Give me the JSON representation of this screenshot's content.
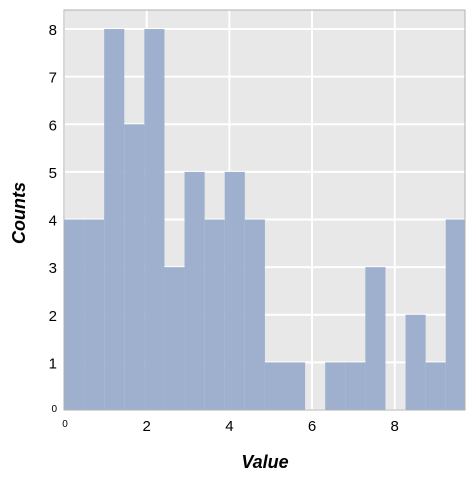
{
  "chart_data": {
    "type": "bar",
    "subtype": "histogram",
    "title": "",
    "xlabel": "Value",
    "ylabel": "Counts",
    "xlim": [
      0,
      9.7
    ],
    "ylim": [
      0,
      8.4
    ],
    "bin_width": 0.486,
    "bin_start": 0,
    "values": [
      4,
      4,
      8,
      6,
      8,
      3,
      5,
      4,
      5,
      4,
      1,
      1,
      0,
      1,
      1,
      3,
      0,
      2,
      1,
      4
    ],
    "x_ticks": [
      0,
      2,
      4,
      6,
      8
    ],
    "x_tick_labels": [
      "0",
      "2",
      "4",
      "6",
      "8"
    ],
    "y_ticks": [
      0,
      1,
      2,
      3,
      4,
      5,
      6,
      7,
      8
    ],
    "y_tick_labels": [
      "0",
      "1",
      "2",
      "3",
      "4",
      "5",
      "6",
      "7",
      "8"
    ],
    "grid": true,
    "colors": {
      "bar": "#9aadcc",
      "background": "#e8e8e8",
      "grid": "#ffffff",
      "frame": "#b0b0b0"
    }
  }
}
